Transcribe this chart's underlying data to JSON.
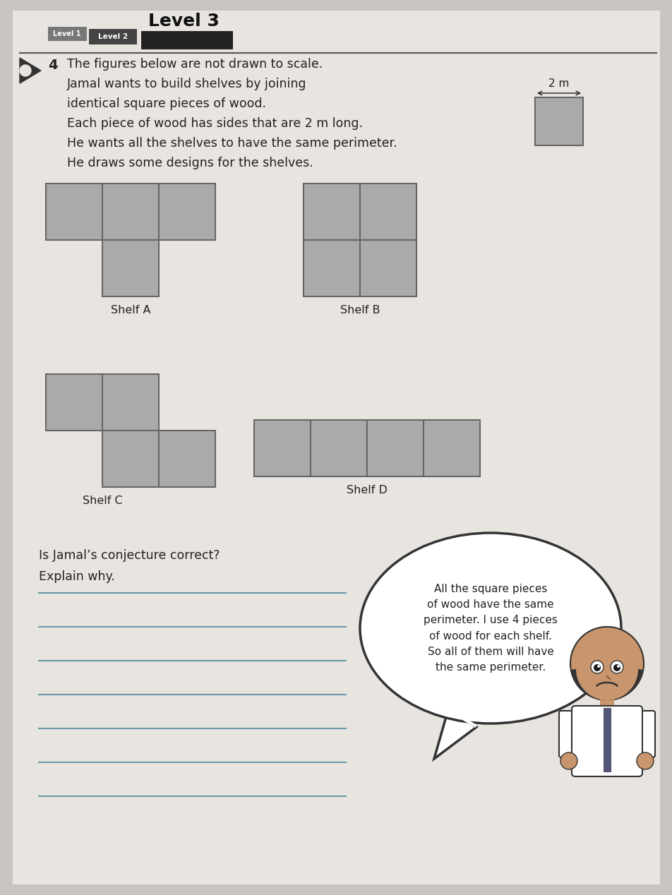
{
  "bg_color": "#c8c4c0",
  "paper_color": "#e8e4e0",
  "title_level1": "Level 1",
  "title_level2": "Level 2",
  "title_level3": "Level 3",
  "question_number": "4",
  "problem_text": [
    "The figures below are not drawn to scale.",
    "Jamal wants to build shelves by joining",
    "identical square pieces of wood.",
    "Each piece of wood has sides that are 2 m long.",
    "He wants all the shelves to have the same perimeter.",
    "He draws some designs for the shelves."
  ],
  "square_label": "2 m",
  "shelf_color": "#aaaaaa",
  "shelf_line_color": "#666666",
  "shelf_A_label": "Shelf A",
  "shelf_B_label": "Shelf B",
  "shelf_C_label": "Shelf C",
  "shelf_D_label": "Shelf D",
  "question_text_1": "Is Jamal’s conjecture correct?",
  "question_text_2": "Explain why.",
  "speech_text": "All the square pieces\nof wood have the same\nperimeter. I use 4 pieces\nof wood for each shelf.\nSo all of them will have\nthe same perimeter.",
  "line_color": "#6699aa",
  "num_lines": 7,
  "header_bar1_color": "#777777",
  "header_bar2_color": "#444444",
  "text_color": "#222222"
}
